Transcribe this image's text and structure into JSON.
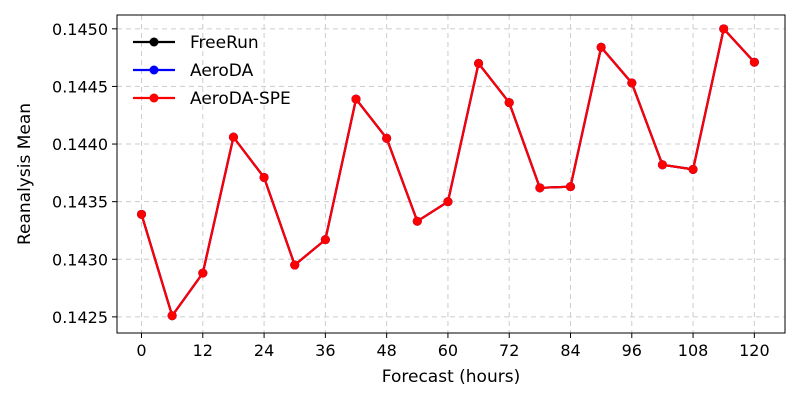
{
  "chart_data": {
    "type": "line",
    "title": "",
    "xlabel": "Forecast (hours)",
    "ylabel": "Reanalysis Mean",
    "xlim": [
      -4.8,
      126
    ],
    "ylim": [
      0.14236,
      0.14512
    ],
    "xticks": [
      0,
      12,
      24,
      36,
      48,
      60,
      72,
      84,
      96,
      108,
      120
    ],
    "yticks": [
      0.1425,
      0.143,
      0.1435,
      0.144,
      0.1445,
      0.145
    ],
    "ytick_labels": [
      "0.1425",
      "0.1430",
      "0.1435",
      "0.1440",
      "0.1445",
      "0.1450"
    ],
    "grid": true,
    "legend_position": "top-left",
    "x": [
      0,
      6,
      12,
      18,
      24,
      30,
      36,
      42,
      48,
      54,
      60,
      66,
      72,
      78,
      84,
      90,
      96,
      102,
      108,
      114,
      120
    ],
    "series": [
      {
        "name": "FreeRun",
        "color": "#000000",
        "values": [
          0.14339,
          0.14251,
          0.14288,
          0.14406,
          0.14371,
          0.14295,
          0.14317,
          0.14439,
          0.14405,
          0.14333,
          0.1435,
          0.1447,
          0.14436,
          0.14362,
          0.14363,
          0.14484,
          0.14453,
          0.14382,
          0.14378,
          0.145,
          0.14471
        ]
      },
      {
        "name": "AeroDA",
        "color": "#0000ff",
        "values": [
          0.14339,
          0.14251,
          0.14288,
          0.14406,
          0.14371,
          0.14295,
          0.14317,
          0.14439,
          0.14405,
          0.14333,
          0.1435,
          0.1447,
          0.14436,
          0.14362,
          0.14363,
          0.14484,
          0.14453,
          0.14382,
          0.14378,
          0.145,
          0.14471
        ]
      },
      {
        "name": "AeroDA-SPE",
        "color": "#ff0000",
        "values": [
          0.14339,
          0.14251,
          0.14288,
          0.14406,
          0.14371,
          0.14295,
          0.14317,
          0.14439,
          0.14405,
          0.14333,
          0.1435,
          0.1447,
          0.14436,
          0.14362,
          0.14363,
          0.14484,
          0.14453,
          0.14382,
          0.14378,
          0.145,
          0.14471
        ]
      }
    ]
  }
}
